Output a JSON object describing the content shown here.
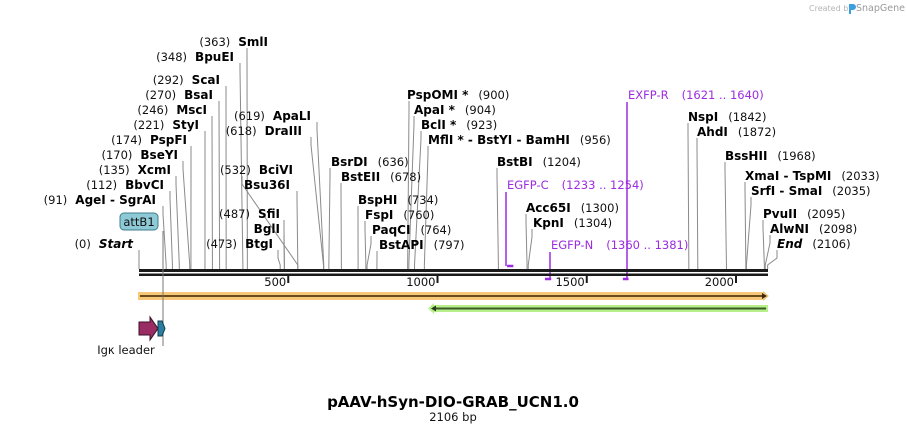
{
  "header": {
    "credit_prefix": "Created by",
    "credit_brand": "SnapGene",
    "brand_color": "#3aa0e0"
  },
  "plasmid": {
    "name": "pAAV-hSyn-DIO-GRAB_UCN1.0",
    "length_label": "2106 bp",
    "length_bp": 2106
  },
  "scale": {
    "ticks": [
      {
        "bp": 500,
        "label": "500"
      },
      {
        "bp": 1000,
        "label": "1000"
      },
      {
        "bp": 1500,
        "label": "1500"
      },
      {
        "bp": 2000,
        "label": "2000"
      }
    ]
  },
  "sites": [
    {
      "name": "SmlI",
      "pos": "(363)",
      "bp": 363,
      "side": "left"
    },
    {
      "name": "BpuEI",
      "pos": "(348)",
      "bp": 348,
      "side": "left"
    },
    {
      "name": "ScaI",
      "pos": "(292)",
      "bp": 292,
      "side": "left"
    },
    {
      "name": "BsaI",
      "pos": "(270)",
      "bp": 270,
      "side": "left"
    },
    {
      "name": "MscI",
      "pos": "(246)",
      "bp": 246,
      "side": "left"
    },
    {
      "name": "StyI",
      "pos": "(221)",
      "bp": 221,
      "side": "left"
    },
    {
      "name": "PspFI",
      "pos": "(174)",
      "bp": 174,
      "side": "left"
    },
    {
      "name": "BseYI",
      "pos": "(170)",
      "bp": 170,
      "side": "left"
    },
    {
      "name": "XcmI",
      "pos": "(135)",
      "bp": 135,
      "side": "left"
    },
    {
      "name": "BbvCI",
      "pos": "(112)",
      "bp": 112,
      "side": "left"
    },
    {
      "name": "AgeI  - SgrAI",
      "pos": "(91)",
      "bp": 91,
      "side": "left"
    },
    {
      "name": "Start",
      "pos": "(0)",
      "bp": 0,
      "side": "left",
      "italic": true
    },
    {
      "name": "ApaLI",
      "pos": "(619)",
      "bp": 619,
      "side": "left"
    },
    {
      "name": "DraIII",
      "pos": "(618)",
      "bp": 618,
      "side": "left"
    },
    {
      "name": "BciVI",
      "pos": "(532)",
      "bp": 532,
      "side": "left"
    },
    {
      "name": "Bsu36I",
      "pos": "",
      "bp": 532,
      "side": "left"
    },
    {
      "name": "SfiI",
      "pos": "(487)",
      "bp": 487,
      "side": "left"
    },
    {
      "name": "BglI",
      "pos": "",
      "bp": 487,
      "side": "left"
    },
    {
      "name": "BtgI",
      "pos": "(473)",
      "bp": 473,
      "side": "left"
    },
    {
      "name": "BsrDI",
      "pos": "(636)",
      "bp": 636,
      "side": "right"
    },
    {
      "name": "BstEII",
      "pos": "(678)",
      "bp": 678,
      "side": "right"
    },
    {
      "name": "BspHI",
      "pos": "(734)",
      "bp": 734,
      "side": "right"
    },
    {
      "name": "FspI",
      "pos": "(760)",
      "bp": 760,
      "side": "right"
    },
    {
      "name": "PaqCI",
      "pos": "(764)",
      "bp": 764,
      "side": "right"
    },
    {
      "name": "BstAPI",
      "pos": "(797)",
      "bp": 797,
      "side": "right"
    },
    {
      "name": "PspOMI *",
      "pos": "(900)",
      "bp": 900,
      "side": "right"
    },
    {
      "name": "ApaI *",
      "pos": "(904)",
      "bp": 904,
      "side": "right"
    },
    {
      "name": "BclI *",
      "pos": "(923)",
      "bp": 923,
      "side": "right"
    },
    {
      "name": "MflI * - BstYI  - BamHI",
      "pos": "(956)",
      "bp": 956,
      "side": "right"
    },
    {
      "name": "BstBI",
      "pos": "(1204)",
      "bp": 1204,
      "side": "right"
    },
    {
      "name": "Acc65I",
      "pos": "(1300)",
      "bp": 1300,
      "side": "right"
    },
    {
      "name": "KpnI",
      "pos": "(1304)",
      "bp": 1304,
      "side": "right"
    },
    {
      "name": "NspI",
      "pos": "(1842)",
      "bp": 1842,
      "side": "right"
    },
    {
      "name": "AhdI",
      "pos": "(1872)",
      "bp": 1872,
      "side": "right"
    },
    {
      "name": "BssHII",
      "pos": "(1968)",
      "bp": 1968,
      "side": "right"
    },
    {
      "name": "XmaI  - TspMI",
      "pos": "(2033)",
      "bp": 2033,
      "side": "right"
    },
    {
      "name": "SrfI  - SmaI",
      "pos": "(2035)",
      "bp": 2035,
      "side": "right"
    },
    {
      "name": "PvuII",
      "pos": "(2095)",
      "bp": 2095,
      "side": "right"
    },
    {
      "name": "AlwNI",
      "pos": "(2098)",
      "bp": 2098,
      "side": "right"
    },
    {
      "name": "End",
      "pos": "(2106)",
      "bp": 2106,
      "side": "right",
      "italic": true
    }
  ],
  "primers": [
    {
      "name": "EXFP-R",
      "range": "(1621 .. 1640)",
      "start": 1621,
      "end": 1640,
      "direction": "reverse"
    },
    {
      "name": "EGFP-C",
      "range": "(1233 .. 1254)",
      "start": 1233,
      "end": 1254,
      "direction": "forward"
    },
    {
      "name": "EGFP-N",
      "range": "(1360 .. 1381)",
      "start": 1360,
      "end": 1381,
      "direction": "reverse"
    }
  ],
  "features": {
    "attB1": {
      "label": "attB1",
      "bp": 91,
      "color": "#8ec9d6"
    },
    "igk": {
      "label": "Igκ leader",
      "color": "#9a2c64"
    },
    "igk_small": {
      "color": "#2a7fa0"
    },
    "orange_bar": {
      "start": 0,
      "end": 2106,
      "color": "#f7c77a",
      "direction": "forward"
    },
    "green_bar": {
      "start": 971,
      "end": 2106,
      "color": "#b7f08a",
      "direction": "reverse"
    }
  },
  "colors": {
    "primer": "#9d2be0",
    "backbone": "#1a1a1a",
    "site_line": "#8a8a8a"
  }
}
